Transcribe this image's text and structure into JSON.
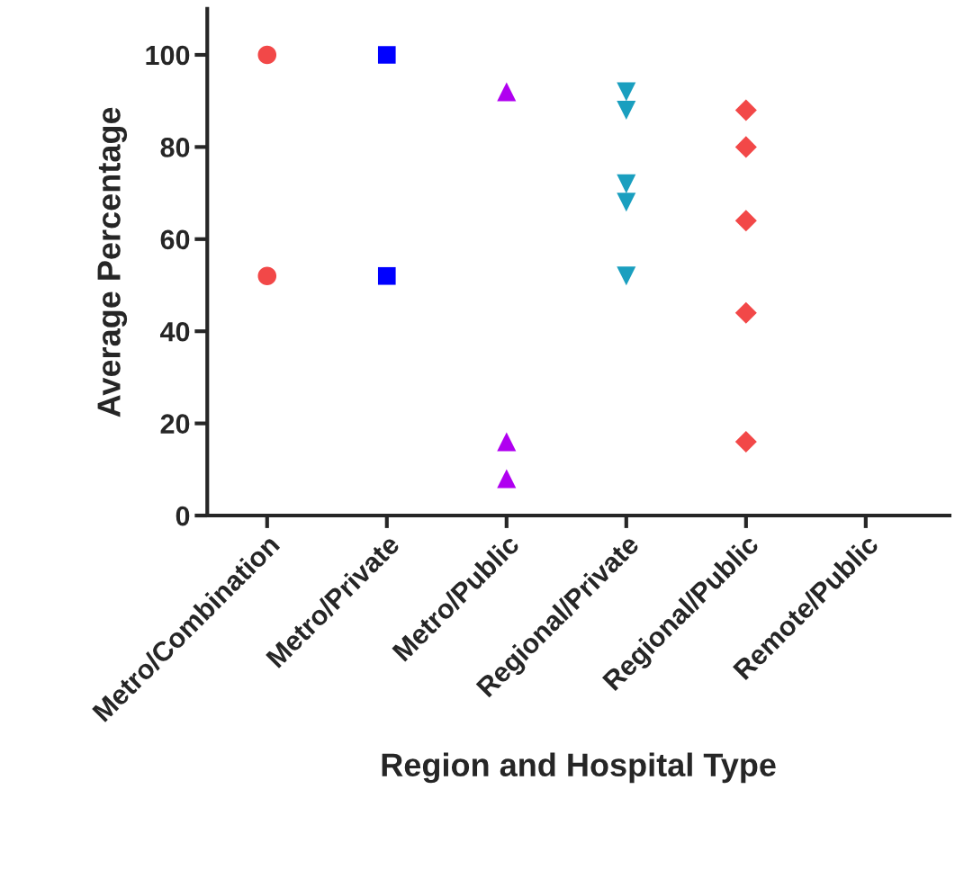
{
  "chart_data": {
    "type": "scatter",
    "xlabel": "Region and Hospital Type",
    "ylabel": "Average Percentage",
    "categories": [
      "Metro/Combination",
      "Metro/Private",
      "Metro/Public",
      "Regional/Private",
      "Regional/Public",
      "Remote/Public"
    ],
    "ylim": [
      0,
      110
    ],
    "yticks": [
      0,
      20,
      40,
      60,
      80,
      100
    ],
    "grid": false,
    "legend": false,
    "series": [
      {
        "color": "#f24848",
        "marker": "circle",
        "x": [
          "Metro/Combination",
          "Metro/Combination"
        ],
        "values": [
          100,
          52
        ]
      },
      {
        "color": "#0000ff",
        "marker": "square",
        "x": [
          "Metro/Private",
          "Metro/Private"
        ],
        "values": [
          100,
          52
        ]
      },
      {
        "color": "#b000f0",
        "marker": "triangle",
        "x": [
          "Metro/Public",
          "Metro/Public",
          "Metro/Public"
        ],
        "values": [
          92,
          16,
          8
        ]
      },
      {
        "color": "#1a9fbf",
        "marker": "triangle_down",
        "x": [
          "Regional/Private",
          "Regional/Private",
          "Regional/Private",
          "Regional/Private",
          "Regional/Private"
        ],
        "values": [
          72,
          68,
          52,
          88,
          92
        ]
      },
      {
        "color": "#f24848",
        "marker": "diamond",
        "x": [
          "Regional/Public",
          "Regional/Public",
          "Regional/Public",
          "Regional/Public",
          "Regional/Public"
        ],
        "values": [
          88,
          80,
          64,
          44,
          16
        ]
      }
    ]
  }
}
